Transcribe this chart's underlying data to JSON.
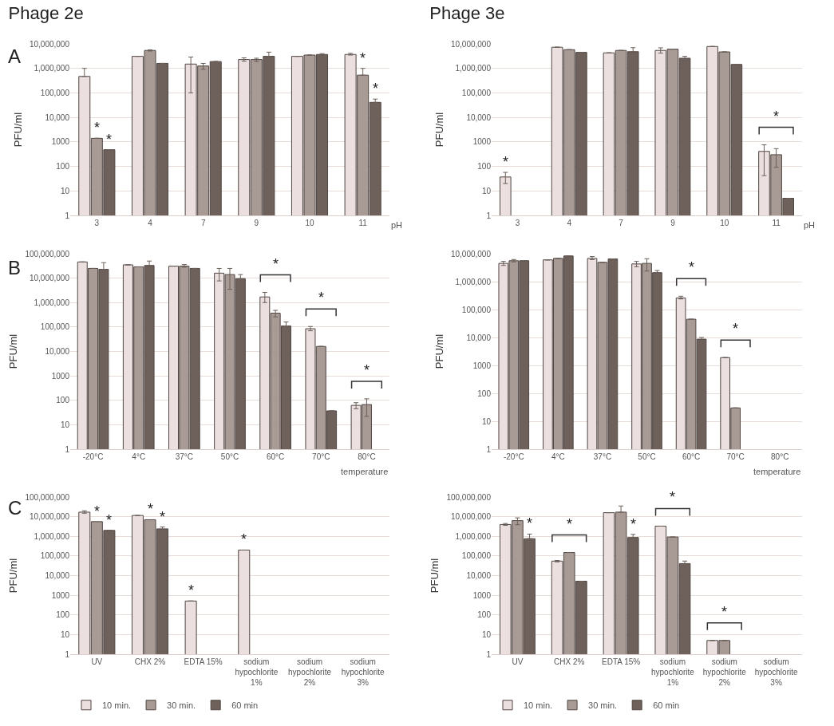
{
  "chart_data": [
    {
      "type": "bar",
      "title": "Phage 2e",
      "ylabel": "PFU/ml",
      "xlabel": "pH",
      "annotations": [
        "A"
      ],
      "categories": [
        "3",
        "4",
        "7",
        "9",
        "10",
        "11"
      ],
      "series": [
        {
          "color": "#ebdfdf",
          "values": [
            470000,
            3100000,
            1500000,
            2300000,
            3100000,
            3700000
          ],
          "errors": [
            [
              470000,
              1000000
            ],
            null,
            [
              100000,
              2900000
            ],
            [
              1950000,
              2700000
            ],
            null,
            [
              3500000,
              4100000
            ]
          ]
        },
        {
          "color": "#a89a94",
          "values": [
            1400,
            5400000,
            1250000,
            2300000,
            3500000,
            530000
          ],
          "errors": [
            null,
            [
              5100000,
              5700000
            ],
            [
              920000,
              1600000
            ],
            [
              1900000,
              2600000
            ],
            null,
            [
              530000,
              1000000
            ]
          ],
          "value_labels": [
            "*",
            null,
            null,
            null,
            null,
            "*"
          ]
        },
        {
          "color": "#6e615b",
          "values": [
            480,
            1600000,
            1900000,
            3100000,
            3700000,
            41000
          ],
          "errors": [
            null,
            null,
            null,
            [
              3100000,
              4600000
            ],
            [
              3300000,
              4000000
            ],
            [
              41000,
              56000
            ]
          ],
          "value_labels": [
            "*",
            null,
            null,
            null,
            null,
            "*"
          ]
        }
      ],
      "log": true,
      "ylim": [
        1,
        10000000
      ],
      "yticks": [
        1,
        10,
        100,
        1000,
        {
          "value": 10000,
          "label": "10,000"
        },
        {
          "value": 100000,
          "label": "100,000"
        },
        {
          "value": 1000000,
          "label": "1,000,000"
        },
        {
          "value": 10000000,
          "label": "10,000,000"
        }
      ],
      "grid": "y",
      "legend": false
    },
    {
      "type": "bar",
      "title": "Phage 3e",
      "ylabel": "PFU/ml",
      "xlabel": "pH",
      "categories": [
        "3",
        "4",
        "7",
        "9",
        "10",
        "11"
      ],
      "series": [
        {
          "color": "#ebdfdf",
          "values": [
            37,
            7300000,
            4300000,
            5400000,
            7800000,
            410
          ],
          "errors": [
            [
              20,
              57
            ],
            null,
            null,
            [
              4200000,
              6900000
            ],
            null,
            [
              42,
              760
            ]
          ],
          "value_labels": [
            "*",
            null,
            null,
            null,
            null,
            "*"
          ]
        },
        {
          "color": "#a89a94",
          "values": [
            null,
            5800000,
            5400000,
            6100000,
            4700000,
            300
          ],
          "errors": [
            null,
            null,
            null,
            null,
            null,
            [
              92,
              530
            ]
          ]
        },
        {
          "color": "#6e615b",
          "values": [
            null,
            4500000,
            4800000,
            2600000,
            1450000,
            5
          ],
          "errors": [
            null,
            null,
            [
              4800000,
              7000000
            ],
            [
              2100000,
              3100000
            ],
            null,
            null
          ]
        }
      ],
      "log": true,
      "ylim": [
        1,
        10000000
      ],
      "yticks": [
        1,
        10,
        100,
        1000,
        {
          "value": 10000,
          "label": "10,000"
        },
        {
          "value": 100000,
          "label": "100,000"
        },
        {
          "value": 1000000,
          "label": "1,000,000"
        },
        {
          "value": 10000000,
          "label": "10,000,000"
        }
      ],
      "grid": "y",
      "legend": false
    },
    {
      "type": "bar",
      "ylabel": "PFU/ml",
      "xlabel": "temperature",
      "annotations": [
        "B"
      ],
      "categories": [
        "-20°C",
        "4°C",
        "37°C",
        "50°C",
        "60°C",
        "70°C",
        "80°C"
      ],
      "series": [
        {
          "color": "#ebdfdf",
          "values": [
            46000000,
            35000000,
            31000000,
            16000000,
            1700000,
            85000,
            62
          ],
          "errors": [
            null,
            null,
            null,
            [
              7700000,
              25000000
            ],
            [
              1000000,
              2600000
            ],
            [
              70000,
              105000
            ],
            [
              45,
              80
            ]
          ],
          "value_labels": [
            null,
            null,
            null,
            null,
            "*",
            "*",
            null
          ]
        },
        {
          "color": "#a89a94",
          "values": [
            25000000,
            29000000,
            31000000,
            14000000,
            370000,
            16000,
            67
          ],
          "errors": [
            null,
            null,
            [
              28000000,
              36000000
            ],
            [
              3500000,
              25000000
            ],
            [
              260000,
              480000
            ],
            null,
            [
              22,
              115
            ]
          ],
          "value_labels": [
            null,
            null,
            null,
            null,
            null,
            null,
            "*"
          ]
        },
        {
          "color": "#6e615b",
          "values": [
            23000000,
            33000000,
            25000000,
            9500000,
            110000,
            37,
            null
          ],
          "errors": [
            [
              23000000,
              43000000
            ],
            [
              33000000,
              50000000
            ],
            null,
            [
              9500000,
              14000000
            ],
            [
              110000,
              160000
            ],
            null,
            null
          ]
        }
      ],
      "log": true,
      "ylim": [
        1,
        100000000
      ],
      "yticks": [
        1,
        10,
        100,
        1000,
        {
          "value": 10000,
          "label": "10,000"
        },
        {
          "value": 100000,
          "label": "100,000"
        },
        {
          "value": 1000000,
          "label": "1,000,000"
        },
        {
          "value": 10000000,
          "label": "10,000,000"
        },
        {
          "value": 100000000,
          "label": "100,000,000"
        }
      ],
      "grid": "y",
      "legend": false
    },
    {
      "type": "bar",
      "ylabel": "PFU/ml",
      "xlabel": "temperature",
      "categories": [
        "-20°C",
        "4°C",
        "37°C",
        "50°C",
        "60°C",
        "70°C",
        "80°C"
      ],
      "series": [
        {
          "color": "#ebdfdf",
          "values": [
            4500000,
            6000000,
            6800000,
            4300000,
            260000,
            1900,
            null
          ],
          "errors": [
            [
              3800000,
              5300000
            ],
            null,
            [
              6100000,
              7900000
            ],
            [
              3400000,
              5300000
            ],
            [
              240000,
              300000
            ],
            null,
            null
          ],
          "value_labels": [
            null,
            null,
            null,
            null,
            "*",
            "*",
            null
          ]
        },
        {
          "color": "#a89a94",
          "values": [
            5600000,
            6800000,
            4900000,
            4500000,
            45000,
            30,
            null
          ],
          "errors": [
            [
              5100000,
              6200000
            ],
            null,
            null,
            [
              2400000,
              6600000
            ],
            null,
            null,
            null
          ]
        },
        {
          "color": "#6e615b",
          "values": [
            5600000,
            8300000,
            6500000,
            2100000,
            8700,
            null,
            null
          ],
          "errors": [
            null,
            null,
            null,
            [
              2100000,
              2500000
            ],
            [
              7800,
              10000
            ],
            null,
            null
          ]
        }
      ],
      "log": true,
      "ylim": [
        1,
        10000000
      ],
      "yticks": [
        1,
        10,
        100,
        1000,
        {
          "value": 10000,
          "label": "10,000"
        },
        {
          "value": 100000,
          "label": "100,000"
        },
        {
          "value": 1000000,
          "label": "1,000,000"
        },
        {
          "value": 10000000,
          "label": "10,000,000"
        }
      ],
      "grid": "y",
      "legend": false
    },
    {
      "type": "bar",
      "ylabel": "PFU/ml",
      "annotations": [
        "C"
      ],
      "categories": [
        "UV",
        "CHX 2%",
        "EDTA 15%",
        "sodium hypochlorite 1%",
        "sodium hypochlorite 2%",
        "sodium hypochlorite 3%"
      ],
      "series": [
        {
          "name": "10 min.",
          "color": "#ebdfdf",
          "values": [
            17000000,
            11500000,
            510,
            200000,
            null,
            null
          ],
          "errors": [
            [
              15000000,
              20000000
            ],
            null,
            null,
            null,
            null,
            null
          ],
          "value_labels": [
            null,
            null,
            "*",
            "*",
            null,
            null
          ]
        },
        {
          "name": "30 min.",
          "color": "#a89a94",
          "values": [
            5600000,
            7000000,
            null,
            null,
            null,
            null
          ],
          "value_labels": [
            "*",
            "*",
            null,
            null,
            null,
            null
          ]
        },
        {
          "name": "60 min",
          "color": "#6e615b",
          "values": [
            2000000,
            2400000,
            null,
            null,
            null,
            null
          ],
          "errors": [
            null,
            [
              1800000,
              3000000
            ],
            null,
            null,
            null,
            null
          ],
          "value_labels": [
            "*",
            "*",
            null,
            null,
            null,
            null
          ]
        }
      ],
      "log": true,
      "ylim": [
        1,
        100000000
      ],
      "yticks": [
        1,
        10,
        100,
        1000,
        {
          "value": 10000,
          "label": "10,000"
        },
        {
          "value": 100000,
          "label": "100,000"
        },
        {
          "value": 1000000,
          "label": "1,000,000"
        },
        {
          "value": 10000000,
          "label": "10,000,000"
        },
        {
          "value": 100000000,
          "label": "100,000,000"
        }
      ],
      "grid": "y",
      "legend": "bottom"
    },
    {
      "type": "bar",
      "ylabel": "PFU/ml",
      "categories": [
        "UV",
        "CHX 2%",
        "EDTA 15%",
        "sodium hypochlorite 1%",
        "sodium hypochlorite 2%",
        "sodium hypochlorite 3%"
      ],
      "series": [
        {
          "name": "10 min.",
          "color": "#ebdfdf",
          "values": [
            4000000,
            55000,
            16000000,
            3300000,
            5,
            null
          ],
          "errors": [
            [
              3600000,
              4500000
            ],
            [
              50000,
              59000
            ],
            null,
            null,
            null,
            null
          ],
          "value_labels": [
            null,
            null,
            null,
            "*",
            "*",
            null
          ]
        },
        {
          "name": "30 min.",
          "color": "#a89a94",
          "values": [
            6300000,
            150000,
            17000000,
            920000,
            5,
            null
          ],
          "errors": [
            [
              3900000,
              8700000
            ],
            null,
            [
              17000000,
              35000000
            ],
            null,
            null,
            null
          ],
          "value_labels": [
            null,
            "*",
            null,
            null,
            null,
            null
          ]
        },
        {
          "name": "60 min",
          "color": "#6e615b",
          "values": [
            760000,
            5200,
            870000,
            41000,
            null,
            null
          ],
          "errors": [
            [
              760000,
              1300000
            ],
            null,
            [
              870000,
              1250000
            ],
            [
              33000,
              55000
            ],
            null,
            null
          ],
          "value_labels": [
            "*",
            null,
            "*",
            null,
            null,
            null
          ]
        }
      ],
      "log": true,
      "ylim": [
        1,
        100000000
      ],
      "yticks": [
        1,
        10,
        100,
        1000,
        {
          "value": 10000,
          "label": "10,000"
        },
        {
          "value": 100000,
          "label": "100,000"
        },
        {
          "value": 1000000,
          "label": "1,000,000"
        },
        {
          "value": 10000000,
          "label": "10,000,000"
        },
        {
          "value": 100000000,
          "label": "100,000,000"
        }
      ],
      "grid": "y",
      "legend": "bottom"
    }
  ]
}
